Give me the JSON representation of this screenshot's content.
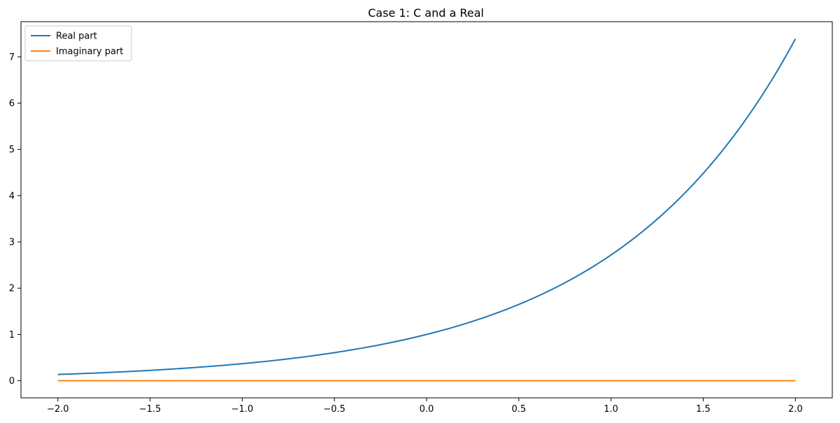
{
  "chart_data": {
    "type": "line",
    "title": "Case 1: C and a Real",
    "xlabel": "",
    "ylabel": "",
    "xlim": [
      -2.2,
      2.2
    ],
    "ylim": [
      -0.37,
      7.76
    ],
    "x_ticks": [
      -2.0,
      -1.5,
      -1.0,
      -0.5,
      0.0,
      0.5,
      1.0,
      1.5,
      2.0
    ],
    "x_tick_labels": [
      "−2.0",
      "−1.5",
      "−1.0",
      "−0.5",
      "0.0",
      "0.5",
      "1.0",
      "1.5",
      "2.0"
    ],
    "y_ticks": [
      0,
      1,
      2,
      3,
      4,
      5,
      6,
      7
    ],
    "y_tick_labels": [
      "0",
      "1",
      "2",
      "3",
      "4",
      "5",
      "6",
      "7"
    ],
    "grid": false,
    "legend_position": "top-left",
    "series": [
      {
        "name": "Real part",
        "color": "#1f77b4",
        "x": [
          -2.0,
          -1.75,
          -1.5,
          -1.25,
          -1.0,
          -0.75,
          -0.5,
          -0.25,
          0.0,
          0.25,
          0.5,
          0.75,
          1.0,
          1.25,
          1.5,
          1.75,
          2.0
        ],
        "y": [
          0.135,
          0.174,
          0.223,
          0.287,
          0.368,
          0.472,
          0.607,
          0.779,
          1.0,
          1.284,
          1.649,
          2.117,
          2.718,
          3.49,
          4.482,
          5.755,
          7.389
        ]
      },
      {
        "name": "Imaginary part",
        "color": "#ff7f0e",
        "x": [
          -2.0,
          2.0
        ],
        "y": [
          0.0,
          0.0
        ]
      }
    ]
  }
}
